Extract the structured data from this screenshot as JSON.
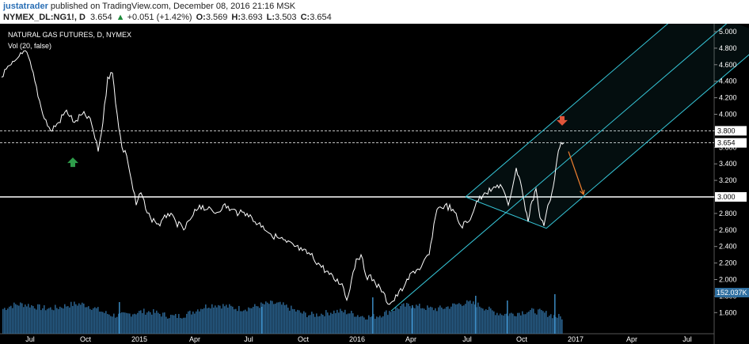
{
  "header": {
    "author": "justatrader",
    "published": "published on TradingView.com, December 08, 2016 21:16 MSK",
    "symbol": "NYMEX_DL:NG1!, D",
    "last": "3.654",
    "arrow": "▲",
    "change": "+0.051 (+1.42%)",
    "o_label": "O:",
    "o": "3.569",
    "h_label": "H:",
    "h": "3.693",
    "l_label": "L:",
    "l": "3.503",
    "c_label": "C:",
    "c": "3.654"
  },
  "chart_data": {
    "type": "line",
    "title": "NATURAL GAS FUTURES, D, NYMEX",
    "subtitle": "Vol (20, false)",
    "y_axis_ticks": [
      "5.000",
      "4.800",
      "4.600",
      "4.400",
      "4.200",
      "4.000",
      "3.800",
      "3.600",
      "3.400",
      "3.200",
      "3.000",
      "2.800",
      "2.600",
      "2.400",
      "2.200",
      "2.000",
      "1.800",
      "1.600"
    ],
    "x_axis_ticks": [
      "Jul",
      "Oct",
      "2015",
      "Apr",
      "Jul",
      "Oct",
      "2016",
      "Apr",
      "Jul",
      "Oct",
      "2017",
      "Apr",
      "Jul"
    ],
    "ylim": [
      1.45,
      5.05
    ],
    "price_series": {
      "name": "NG1! close",
      "x": [
        0,
        12,
        22,
        32,
        42,
        52,
        62,
        72,
        82,
        92,
        102,
        112,
        122,
        128,
        134,
        140,
        146,
        152,
        158,
        164,
        170,
        176,
        182,
        188,
        194,
        200,
        210,
        220,
        230,
        240,
        250,
        260,
        270,
        280,
        290,
        300,
        310,
        320,
        330,
        340,
        350,
        360,
        370,
        380,
        390,
        400,
        410,
        420,
        430,
        436,
        442,
        448,
        454,
        460,
        470,
        480,
        490,
        500,
        510,
        520,
        530,
        540,
        550,
        560,
        570,
        580,
        590,
        600,
        610,
        620,
        630,
        640,
        650,
        655,
        660,
        665,
        670,
        675,
        680,
        685,
        690,
        695,
        700,
        705,
        710
      ],
      "y": [
        4.45,
        4.6,
        4.7,
        4.75,
        4.4,
        4.0,
        3.8,
        3.9,
        4.05,
        3.9,
        4.0,
        3.95,
        3.55,
        3.9,
        4.45,
        4.5,
        4.0,
        3.6,
        3.5,
        3.2,
        2.9,
        3.05,
        2.85,
        2.75,
        2.7,
        2.65,
        2.8,
        2.7,
        2.6,
        2.75,
        2.9,
        2.85,
        2.8,
        2.9,
        2.85,
        2.8,
        2.8,
        2.7,
        2.65,
        2.55,
        2.5,
        2.45,
        2.4,
        2.35,
        2.3,
        2.2,
        2.1,
        2.0,
        1.95,
        1.75,
        2.0,
        2.25,
        2.3,
        2.05,
        2.0,
        1.85,
        1.7,
        1.8,
        1.95,
        2.1,
        2.15,
        2.3,
        2.85,
        2.9,
        2.85,
        2.65,
        2.7,
        2.95,
        3.05,
        3.1,
        3.15,
        2.9,
        3.35,
        3.2,
        2.95,
        2.7,
        2.95,
        3.1,
        2.75,
        2.65,
        2.9,
        3.05,
        3.35,
        3.6,
        3.654
      ]
    },
    "volume_series": {
      "name": "Vol (20, false)",
      "last_label": "152.037K",
      "color": "#2f6fa0"
    },
    "horizontal_levels": [
      {
        "value": 3.8,
        "label": "3.800",
        "style": "dashed"
      },
      {
        "value": 3.654,
        "label": "3.654",
        "style": "dashed"
      },
      {
        "value": 3.0,
        "label": "3.000",
        "style": "solid"
      }
    ],
    "pitchfork": {
      "color": "#36c6d8",
      "pivot_a": {
        "x": 494,
        "y": 1.62
      },
      "pivot_b": {
        "x": 588,
        "y": 3.0
      },
      "pivot_c": {
        "x": 690,
        "y": 2.62
      }
    },
    "annotations": [
      {
        "type": "arrow-up",
        "x": 92,
        "y": 3.42,
        "color": "#2e9c4a"
      },
      {
        "type": "arrow-down",
        "x": 710,
        "y": 3.92,
        "color": "#e0553a"
      },
      {
        "type": "trend-arrow",
        "x1": 718,
        "y1": 3.55,
        "x2": 737,
        "y2": 3.03,
        "color": "#f08030"
      }
    ],
    "colors": {
      "background": "#000000",
      "price_line": "#ffffff",
      "axis_label_bg": "#ffffff"
    },
    "grid": false
  }
}
